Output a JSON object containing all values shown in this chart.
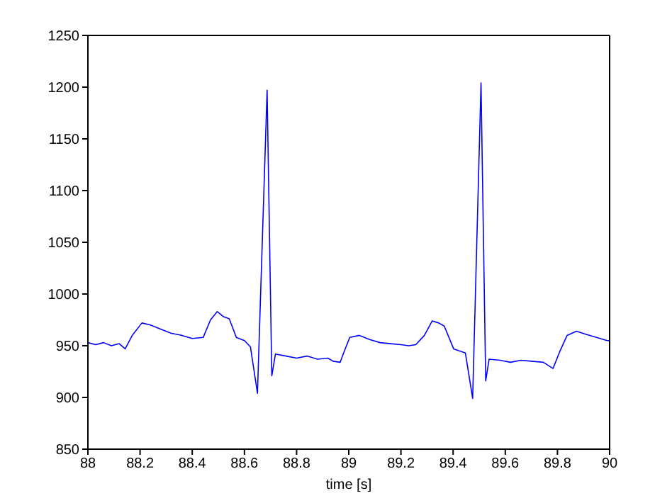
{
  "chart_data": {
    "type": "line",
    "xlabel": "time [s]",
    "xlim": [
      88,
      90
    ],
    "xticks": [
      88,
      88.2,
      88.4,
      88.6,
      88.8,
      89,
      89.2,
      89.4,
      89.6,
      89.8,
      90
    ],
    "ylim": [
      850,
      1250
    ],
    "yticks": [
      850,
      900,
      950,
      1000,
      1050,
      1100,
      1150,
      1200,
      1250
    ],
    "series": [
      {
        "color": "#0000ff",
        "x": [
          88.0,
          88.03,
          88.06,
          88.09,
          88.12,
          88.143,
          88.17,
          88.207,
          88.24,
          88.28,
          88.32,
          88.36,
          88.4,
          88.442,
          88.47,
          88.496,
          88.52,
          88.542,
          88.569,
          88.6,
          88.623,
          88.65,
          88.687,
          88.705,
          88.719,
          88.76,
          88.8,
          88.84,
          88.88,
          88.92,
          88.94,
          88.967,
          88.985,
          89.004,
          89.04,
          89.08,
          89.12,
          89.16,
          89.2,
          89.23,
          89.257,
          89.29,
          89.32,
          89.345,
          89.366,
          89.402,
          89.447,
          89.475,
          89.507,
          89.525,
          89.538,
          89.58,
          89.62,
          89.66,
          89.7,
          89.746,
          89.783,
          89.81,
          89.837,
          89.873,
          89.91,
          89.95,
          89.99,
          90.0
        ],
        "values": [
          953,
          951,
          953,
          950,
          952,
          947,
          960,
          972,
          970,
          966,
          962,
          960,
          957,
          958,
          975,
          983,
          978,
          976,
          958,
          955,
          949,
          904,
          1197,
          921,
          942,
          940,
          938,
          940,
          937,
          938,
          935,
          934,
          946,
          958,
          960,
          956,
          953,
          952,
          951,
          950,
          951,
          960,
          974,
          972,
          969,
          947,
          943,
          899,
          1204,
          916,
          937,
          936,
          934,
          936,
          935,
          934,
          928,
          945,
          960,
          964,
          961,
          958,
          955,
          955
        ]
      }
    ]
  }
}
